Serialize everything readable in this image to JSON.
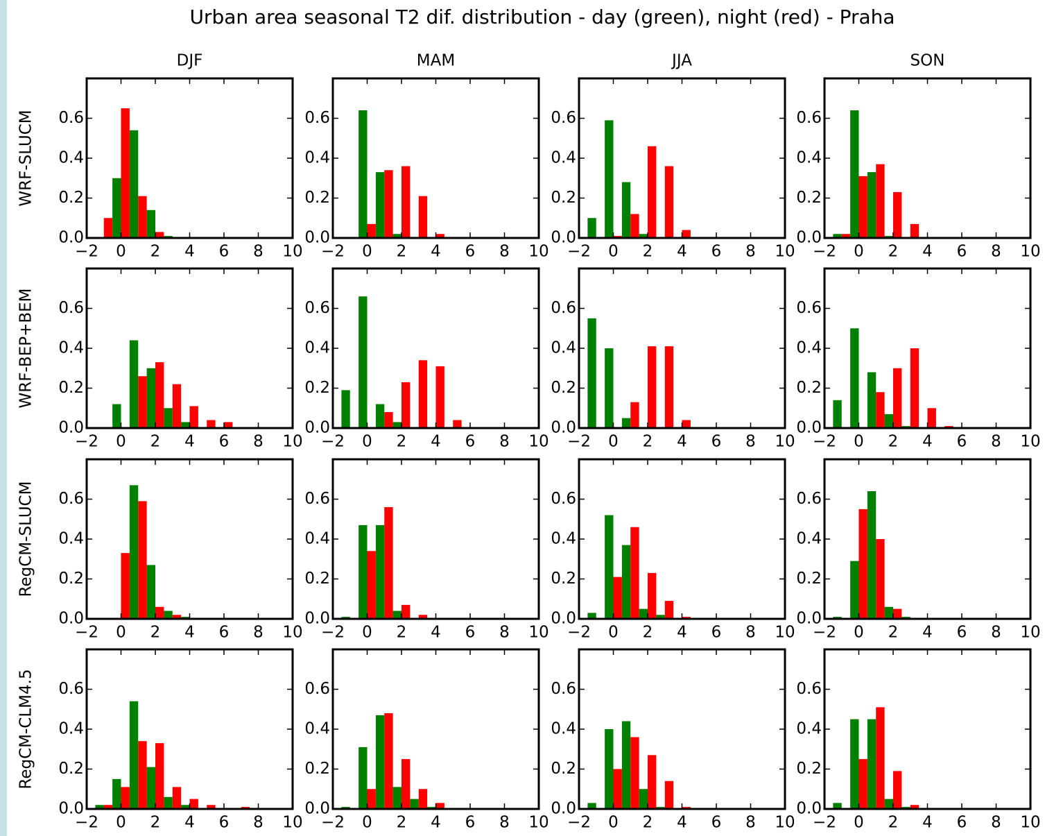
{
  "title": "Urban area seasonal T2 dif. distribution - day (green), night (red) - Praha",
  "chart_data": [
    {
      "type": "bar",
      "title": "DJF",
      "ylabel": "WRF-SLUCM",
      "x": [
        -1,
        0,
        1,
        2,
        3,
        4,
        5,
        6,
        7
      ],
      "series": [
        {
          "color": "#008000",
          "values": [
            0,
            0.3,
            0.54,
            0.14,
            0.01,
            0,
            0,
            0,
            0
          ]
        },
        {
          "color": "#ff0000",
          "values": [
            0.1,
            0.65,
            0.21,
            0.03,
            0,
            0,
            0,
            0,
            0
          ]
        }
      ],
      "xlim": [
        -2,
        10
      ],
      "ylim": [
        0,
        0.8
      ],
      "xticks": [
        {
          "value": -2,
          "label": "−2"
        },
        0,
        2,
        4,
        6,
        8,
        10
      ],
      "yticks": [
        {
          "value": 0,
          "label": "0.0"
        },
        0.2,
        0.4,
        0.6
      ]
    },
    {
      "type": "bar",
      "title": "MAM",
      "x": [
        -1,
        0,
        1,
        2,
        3,
        4,
        5,
        6,
        7
      ],
      "series": [
        {
          "color": "#008000",
          "values": [
            0,
            0.64,
            0.33,
            0.02,
            0,
            0,
            0,
            0,
            0
          ]
        },
        {
          "color": "#ff0000",
          "values": [
            0,
            0.07,
            0.34,
            0.36,
            0.21,
            0.02,
            0,
            0,
            0
          ]
        }
      ],
      "xlim": [
        -2,
        10
      ],
      "ylim": [
        0,
        0.8
      ],
      "xticks": [
        {
          "value": -2,
          "label": "−2"
        },
        0,
        2,
        4,
        6,
        8,
        10
      ],
      "yticks": [
        {
          "value": 0,
          "label": "0.0"
        },
        0.2,
        0.4,
        0.6
      ]
    },
    {
      "type": "bar",
      "title": "JJA",
      "x": [
        -1,
        0,
        1,
        2,
        3,
        4,
        5,
        6,
        7
      ],
      "series": [
        {
          "color": "#008000",
          "values": [
            0.1,
            0.59,
            0.28,
            0.02,
            0,
            0,
            0,
            0,
            0
          ]
        },
        {
          "color": "#ff0000",
          "values": [
            0,
            0.01,
            0.12,
            0.46,
            0.36,
            0.04,
            0,
            0,
            0
          ]
        }
      ],
      "xlim": [
        -2,
        10
      ],
      "ylim": [
        0,
        0.8
      ],
      "xticks": [
        {
          "value": -2,
          "label": "−2"
        },
        0,
        2,
        4,
        6,
        8,
        10
      ],
      "yticks": [
        {
          "value": 0,
          "label": "0.0"
        },
        0.2,
        0.4,
        0.6
      ]
    },
    {
      "type": "bar",
      "title": "SON",
      "x": [
        -1,
        0,
        1,
        2,
        3,
        4,
        5,
        6,
        7
      ],
      "series": [
        {
          "color": "#008000",
          "values": [
            0.02,
            0.64,
            0.33,
            0.01,
            0,
            0,
            0,
            0,
            0
          ]
        },
        {
          "color": "#ff0000",
          "values": [
            0.02,
            0.31,
            0.37,
            0.23,
            0.07,
            0,
            0,
            0,
            0
          ]
        }
      ],
      "xlim": [
        -2,
        10
      ],
      "ylim": [
        0,
        0.8
      ],
      "xticks": [
        {
          "value": -2,
          "label": "−2"
        },
        0,
        2,
        4,
        6,
        8,
        10
      ],
      "yticks": [
        {
          "value": 0,
          "label": "0.0"
        },
        0.2,
        0.4,
        0.6
      ]
    },
    {
      "type": "bar",
      "ylabel": "WRF-BEP+BEM",
      "x": [
        -1,
        0,
        1,
        2,
        3,
        4,
        5,
        6,
        7
      ],
      "series": [
        {
          "color": "#008000",
          "values": [
            0,
            0.12,
            0.44,
            0.3,
            0.1,
            0.03,
            0,
            0,
            0
          ]
        },
        {
          "color": "#ff0000",
          "values": [
            0,
            0,
            0.26,
            0.33,
            0.22,
            0.11,
            0.04,
            0.03,
            0
          ]
        }
      ],
      "xlim": [
        -2,
        10
      ],
      "ylim": [
        0,
        0.8
      ],
      "xticks": [
        {
          "value": -2,
          "label": "−2"
        },
        0,
        2,
        4,
        6,
        8,
        10
      ],
      "yticks": [
        {
          "value": 0,
          "label": "0.0"
        },
        0.2,
        0.4,
        0.6
      ]
    },
    {
      "type": "bar",
      "x": [
        -1,
        0,
        1,
        2,
        3,
        4,
        5,
        6,
        7
      ],
      "series": [
        {
          "color": "#008000",
          "values": [
            0.19,
            0.66,
            0.12,
            0.03,
            0,
            0,
            0,
            0,
            0
          ]
        },
        {
          "color": "#ff0000",
          "values": [
            0,
            0,
            0.08,
            0.23,
            0.34,
            0.31,
            0.04,
            0,
            0
          ]
        }
      ],
      "xlim": [
        -2,
        10
      ],
      "ylim": [
        0,
        0.8
      ],
      "xticks": [
        {
          "value": -2,
          "label": "−2"
        },
        0,
        2,
        4,
        6,
        8,
        10
      ],
      "yticks": [
        {
          "value": 0,
          "label": "0.0"
        },
        0.2,
        0.4,
        0.6
      ]
    },
    {
      "type": "bar",
      "x": [
        -1,
        0,
        1,
        2,
        3,
        4,
        5,
        6,
        7
      ],
      "series": [
        {
          "color": "#008000",
          "values": [
            0.55,
            0.4,
            0.05,
            0,
            0,
            0,
            0,
            0,
            0
          ]
        },
        {
          "color": "#ff0000",
          "values": [
            0,
            0,
            0.13,
            0.41,
            0.41,
            0.04,
            0,
            0,
            0
          ]
        }
      ],
      "xlim": [
        -2,
        10
      ],
      "ylim": [
        0,
        0.8
      ],
      "xticks": [
        {
          "value": -2,
          "label": "−2"
        },
        0,
        2,
        4,
        6,
        8,
        10
      ],
      "yticks": [
        {
          "value": 0,
          "label": "0.0"
        },
        0.2,
        0.4,
        0.6
      ]
    },
    {
      "type": "bar",
      "x": [
        -1,
        0,
        1,
        2,
        3,
        4,
        5,
        6,
        7
      ],
      "series": [
        {
          "color": "#008000",
          "values": [
            0.14,
            0.5,
            0.28,
            0.07,
            0.01,
            0,
            0,
            0,
            0
          ]
        },
        {
          "color": "#ff0000",
          "values": [
            0,
            0,
            0.18,
            0.3,
            0.4,
            0.1,
            0.01,
            0,
            0
          ]
        }
      ],
      "xlim": [
        -2,
        10
      ],
      "ylim": [
        0,
        0.8
      ],
      "xticks": [
        {
          "value": -2,
          "label": "−2"
        },
        0,
        2,
        4,
        6,
        8,
        10
      ],
      "yticks": [
        {
          "value": 0,
          "label": "0.0"
        },
        0.2,
        0.4,
        0.6
      ]
    },
    {
      "type": "bar",
      "ylabel": "RegCM-SLUCM",
      "x": [
        -1,
        0,
        1,
        2,
        3,
        4,
        5,
        6,
        7
      ],
      "series": [
        {
          "color": "#008000",
          "values": [
            0,
            0,
            0.67,
            0.27,
            0.04,
            0.01,
            0,
            0,
            0
          ]
        },
        {
          "color": "#ff0000",
          "values": [
            0,
            0.33,
            0.59,
            0.06,
            0.02,
            0,
            0,
            0,
            0
          ]
        }
      ],
      "xlim": [
        -2,
        10
      ],
      "ylim": [
        0,
        0.8
      ],
      "xticks": [
        {
          "value": -2,
          "label": "−2"
        },
        0,
        2,
        4,
        6,
        8,
        10
      ],
      "yticks": [
        {
          "value": 0,
          "label": "0.0"
        },
        0.2,
        0.4,
        0.6
      ]
    },
    {
      "type": "bar",
      "x": [
        -1,
        0,
        1,
        2,
        3,
        4,
        5,
        6,
        7
      ],
      "series": [
        {
          "color": "#008000",
          "values": [
            0.01,
            0.47,
            0.47,
            0.04,
            0,
            0,
            0,
            0,
            0
          ]
        },
        {
          "color": "#ff0000",
          "values": [
            0,
            0.34,
            0.56,
            0.07,
            0.02,
            0,
            0,
            0,
            0
          ]
        }
      ],
      "xlim": [
        -2,
        10
      ],
      "ylim": [
        0,
        0.8
      ],
      "xticks": [
        {
          "value": -2,
          "label": "−2"
        },
        0,
        2,
        4,
        6,
        8,
        10
      ],
      "yticks": [
        {
          "value": 0,
          "label": "0.0"
        },
        0.2,
        0.4,
        0.6
      ]
    },
    {
      "type": "bar",
      "x": [
        -1,
        0,
        1,
        2,
        3,
        4,
        5,
        6,
        7
      ],
      "series": [
        {
          "color": "#008000",
          "values": [
            0.03,
            0.52,
            0.37,
            0.05,
            0.02,
            0,
            0,
            0,
            0
          ]
        },
        {
          "color": "#ff0000",
          "values": [
            0,
            0.21,
            0.46,
            0.23,
            0.09,
            0.01,
            0,
            0,
            0
          ]
        }
      ],
      "xlim": [
        -2,
        10
      ],
      "ylim": [
        0,
        0.8
      ],
      "xticks": [
        {
          "value": -2,
          "label": "−2"
        },
        0,
        2,
        4,
        6,
        8,
        10
      ],
      "yticks": [
        {
          "value": 0,
          "label": "0.0"
        },
        0.2,
        0.4,
        0.6
      ]
    },
    {
      "type": "bar",
      "x": [
        -1,
        0,
        1,
        2,
        3,
        4,
        5,
        6,
        7
      ],
      "series": [
        {
          "color": "#008000",
          "values": [
            0.01,
            0.29,
            0.64,
            0.06,
            0.01,
            0,
            0,
            0,
            0
          ]
        },
        {
          "color": "#ff0000",
          "values": [
            0,
            0.55,
            0.4,
            0.05,
            0,
            0,
            0,
            0,
            0
          ]
        }
      ],
      "xlim": [
        -2,
        10
      ],
      "ylim": [
        0,
        0.8
      ],
      "xticks": [
        {
          "value": -2,
          "label": "−2"
        },
        0,
        2,
        4,
        6,
        8,
        10
      ],
      "yticks": [
        {
          "value": 0,
          "label": "0.0"
        },
        0.2,
        0.4,
        0.6
      ]
    },
    {
      "type": "bar",
      "ylabel": "RegCM-CLM4.5",
      "x": [
        -1,
        0,
        1,
        2,
        3,
        4,
        5,
        6,
        7
      ],
      "series": [
        {
          "color": "#008000",
          "values": [
            0.02,
            0.15,
            0.54,
            0.21,
            0.06,
            0.02,
            0,
            0,
            0
          ]
        },
        {
          "color": "#ff0000",
          "values": [
            0.02,
            0.11,
            0.34,
            0.33,
            0.11,
            0.05,
            0.02,
            0,
            0.01
          ]
        }
      ],
      "xlim": [
        -2,
        10
      ],
      "ylim": [
        0,
        0.8
      ],
      "xticks": [
        {
          "value": -2,
          "label": "−2"
        },
        0,
        2,
        4,
        6,
        8,
        10
      ],
      "yticks": [
        {
          "value": 0,
          "label": "0.0"
        },
        0.2,
        0.4,
        0.6
      ]
    },
    {
      "type": "bar",
      "x": [
        -1,
        0,
        1,
        2,
        3,
        4,
        5,
        6,
        7
      ],
      "series": [
        {
          "color": "#008000",
          "values": [
            0.01,
            0.31,
            0.47,
            0.11,
            0.05,
            0.01,
            0,
            0,
            0
          ]
        },
        {
          "color": "#ff0000",
          "values": [
            0,
            0.1,
            0.48,
            0.25,
            0.1,
            0.03,
            0,
            0,
            0
          ]
        }
      ],
      "xlim": [
        -2,
        10
      ],
      "ylim": [
        0,
        0.8
      ],
      "xticks": [
        {
          "value": -2,
          "label": "−2"
        },
        0,
        2,
        4,
        6,
        8,
        10
      ],
      "yticks": [
        {
          "value": 0,
          "label": "0.0"
        },
        0.2,
        0.4,
        0.6
      ]
    },
    {
      "type": "bar",
      "x": [
        -1,
        0,
        1,
        2,
        3,
        4,
        5,
        6,
        7
      ],
      "series": [
        {
          "color": "#008000",
          "values": [
            0.03,
            0.4,
            0.44,
            0.1,
            0.01,
            0,
            0,
            0,
            0
          ]
        },
        {
          "color": "#ff0000",
          "values": [
            0,
            0.2,
            0.36,
            0.27,
            0.14,
            0.01,
            0,
            0,
            0
          ]
        }
      ],
      "xlim": [
        -2,
        10
      ],
      "ylim": [
        0,
        0.8
      ],
      "xticks": [
        {
          "value": -2,
          "label": "−2"
        },
        0,
        2,
        4,
        6,
        8,
        10
      ],
      "yticks": [
        {
          "value": 0,
          "label": "0.0"
        },
        0.2,
        0.4,
        0.6
      ]
    },
    {
      "type": "bar",
      "x": [
        -1,
        0,
        1,
        2,
        3,
        4,
        5,
        6,
        7
      ],
      "series": [
        {
          "color": "#008000",
          "values": [
            0.03,
            0.45,
            0.45,
            0.05,
            0.01,
            0,
            0,
            0,
            0
          ]
        },
        {
          "color": "#ff0000",
          "values": [
            0,
            0.25,
            0.51,
            0.19,
            0.02,
            0,
            0,
            0,
            0
          ]
        }
      ],
      "xlim": [
        -2,
        10
      ],
      "ylim": [
        0,
        0.8
      ],
      "xticks": [
        {
          "value": -2,
          "label": "−2"
        },
        0,
        2,
        4,
        6,
        8,
        10
      ],
      "yticks": [
        {
          "value": 0,
          "label": "0.0"
        },
        0.2,
        0.4,
        0.6
      ]
    }
  ]
}
